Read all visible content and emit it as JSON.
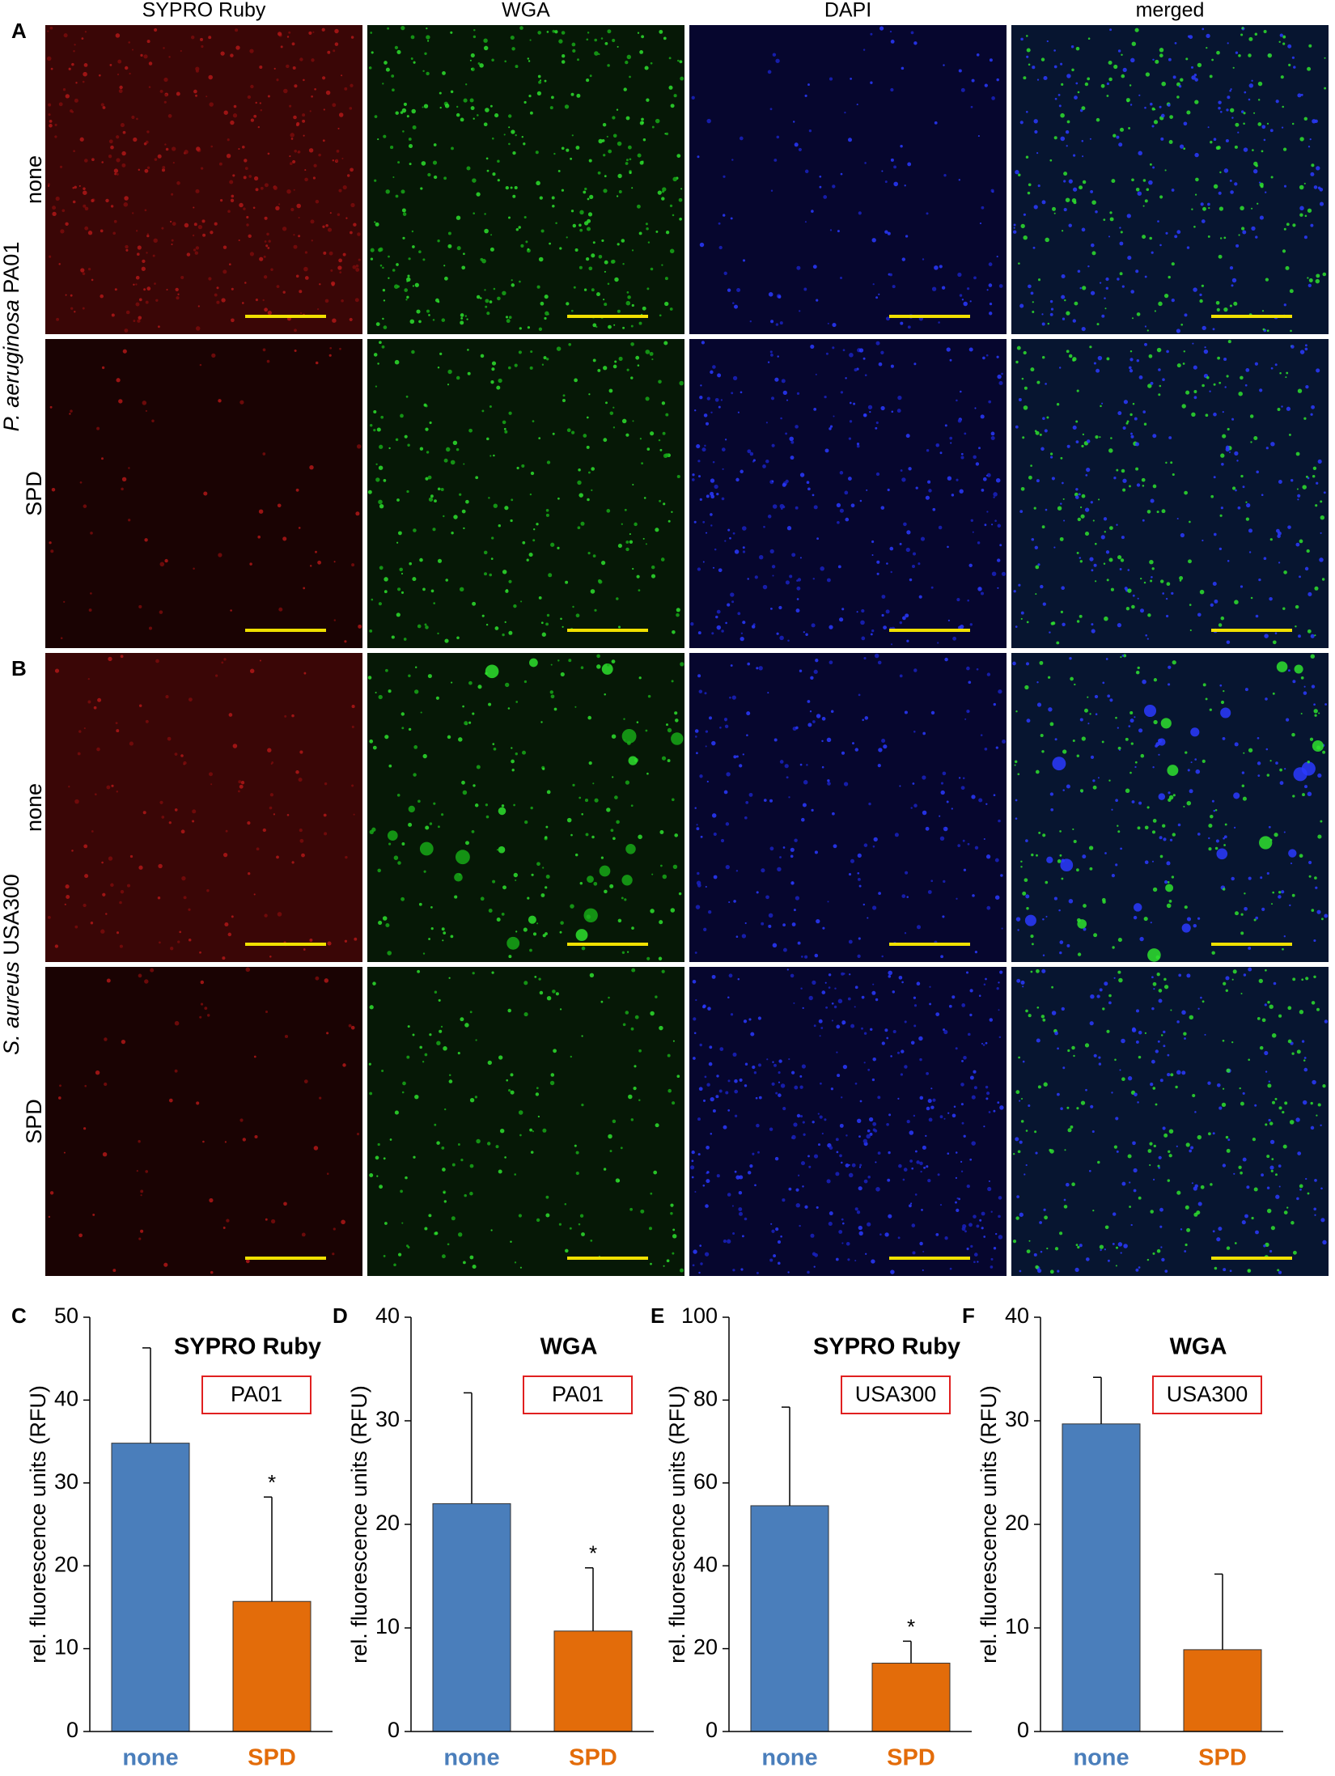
{
  "figure": {
    "panel_labels": [
      "A",
      "B"
    ],
    "columns": [
      "SYPRO Ruby",
      "WGA",
      "DAPI",
      "merged"
    ],
    "treatments": [
      "none",
      "SPD"
    ],
    "organisms": [
      {
        "species": "P. aeruginosa",
        "strain": "PA01"
      },
      {
        "species": "S. aureus",
        "strain": "USA300"
      }
    ]
  },
  "chart_data": [
    {
      "type": "bar",
      "panel": "C",
      "title": "SYPRO Ruby",
      "strain": "PA01",
      "ylabel": "rel. fluorescence units (RFU)",
      "categories": [
        "none",
        "SPD"
      ],
      "values": [
        34.8,
        15.7
      ],
      "errors": [
        11.5,
        12.6
      ],
      "colors": [
        "#4a7ebb",
        "#e36c0a"
      ],
      "markers": [
        null,
        "*"
      ],
      "ylim": [
        0,
        50
      ],
      "yticks": [
        0,
        10,
        20,
        30,
        40,
        50
      ]
    },
    {
      "type": "bar",
      "panel": "D",
      "title": "WGA",
      "strain": "PA01",
      "ylabel": "rel. fluorescence units (RFU)",
      "categories": [
        "none",
        "SPD"
      ],
      "values": [
        22,
        9.7
      ],
      "errors": [
        10.7,
        6.1
      ],
      "colors": [
        "#4a7ebb",
        "#e36c0a"
      ],
      "markers": [
        null,
        "*"
      ],
      "ylim": [
        0,
        40
      ],
      "yticks": [
        0,
        10,
        20,
        30,
        40
      ]
    },
    {
      "type": "bar",
      "panel": "E",
      "title": "SYPRO Ruby",
      "strain": "USA300",
      "ylabel": "rel. fluorescence units (RFU)",
      "categories": [
        "none",
        "SPD"
      ],
      "values": [
        54.5,
        16.5
      ],
      "errors": [
        23.8,
        5.3
      ],
      "colors": [
        "#4a7ebb",
        "#e36c0a"
      ],
      "markers": [
        null,
        "*"
      ],
      "ylim": [
        0,
        100
      ],
      "yticks": [
        0,
        20,
        40,
        60,
        80,
        100
      ]
    },
    {
      "type": "bar",
      "panel": "F",
      "title": "WGA",
      "strain": "USA300",
      "ylabel": "rel. fluorescence units (RFU)",
      "categories": [
        "none",
        "SPD"
      ],
      "values": [
        29.7,
        7.9
      ],
      "errors": [
        4.5,
        7.3
      ],
      "colors": [
        "#4a7ebb",
        "#e36c0a"
      ],
      "markers": [
        null,
        null
      ],
      "ylim": [
        0,
        40
      ],
      "yticks": [
        0,
        10,
        20,
        30,
        40
      ]
    }
  ]
}
